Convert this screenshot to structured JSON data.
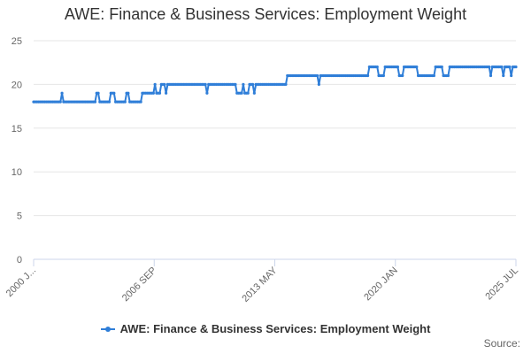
{
  "chart_data": {
    "type": "line",
    "title": "AWE: Finance & Business Services: Employment Weight",
    "xlabel": "",
    "ylabel": "",
    "ylim": [
      0,
      25
    ],
    "yticks": [
      0,
      5,
      10,
      15,
      20,
      25
    ],
    "xticks": [
      "2000 J...",
      "2006 SEP",
      "2013 MAY",
      "2020 JAN",
      "2025 JUL"
    ],
    "x_range": [
      "2000-01",
      "2025-07"
    ],
    "grid": "horizontal",
    "legend_position": "bottom",
    "series": [
      {
        "name": "AWE: Finance & Business Services: Employment Weight",
        "color": "#2f7ed8",
        "points": [
          [
            "2000-01",
            18
          ],
          [
            "2001-06",
            18
          ],
          [
            "2001-07",
            19
          ],
          [
            "2001-08",
            18
          ],
          [
            "2003-04",
            18
          ],
          [
            "2003-05",
            19
          ],
          [
            "2003-07",
            18
          ],
          [
            "2004-01",
            18
          ],
          [
            "2004-02",
            19
          ],
          [
            "2004-05",
            18
          ],
          [
            "2004-11",
            18
          ],
          [
            "2004-12",
            19
          ],
          [
            "2005-02",
            18
          ],
          [
            "2005-09",
            18
          ],
          [
            "2005-10",
            19
          ],
          [
            "2006-05",
            19
          ],
          [
            "2006-06",
            20
          ],
          [
            "2006-07",
            19
          ],
          [
            "2006-09",
            19
          ],
          [
            "2006-10",
            20
          ],
          [
            "2006-12",
            20
          ],
          [
            "2007-01",
            19
          ],
          [
            "2007-02",
            20
          ],
          [
            "2009-02",
            20
          ],
          [
            "2009-03",
            19
          ],
          [
            "2009-04",
            20
          ],
          [
            "2010-09",
            20
          ],
          [
            "2010-10",
            19
          ],
          [
            "2011-01",
            19
          ],
          [
            "2011-02",
            20
          ],
          [
            "2011-03",
            19
          ],
          [
            "2011-05",
            19
          ],
          [
            "2011-06",
            20
          ],
          [
            "2011-08",
            20
          ],
          [
            "2011-09",
            19
          ],
          [
            "2011-10",
            20
          ],
          [
            "2013-05",
            20
          ],
          [
            "2013-06",
            21
          ],
          [
            "2015-01",
            21
          ],
          [
            "2015-02",
            20
          ],
          [
            "2015-03",
            21
          ],
          [
            "2017-09",
            21
          ],
          [
            "2017-10",
            22
          ],
          [
            "2018-03",
            22
          ],
          [
            "2018-04",
            21
          ],
          [
            "2018-07",
            21
          ],
          [
            "2018-08",
            22
          ],
          [
            "2019-04",
            22
          ],
          [
            "2019-05",
            21
          ],
          [
            "2019-07",
            21
          ],
          [
            "2019-08",
            22
          ],
          [
            "2020-04",
            22
          ],
          [
            "2020-05",
            21
          ],
          [
            "2021-03",
            21
          ],
          [
            "2021-04",
            22
          ],
          [
            "2021-08",
            22
          ],
          [
            "2021-09",
            21
          ],
          [
            "2021-12",
            21
          ],
          [
            "2022-01",
            22
          ],
          [
            "2024-02",
            22
          ],
          [
            "2024-03",
            21
          ],
          [
            "2024-04",
            22
          ],
          [
            "2024-10",
            22
          ],
          [
            "2024-11",
            21
          ],
          [
            "2024-12",
            22
          ],
          [
            "2025-03",
            22
          ],
          [
            "2025-04",
            21
          ],
          [
            "2025-05",
            22
          ],
          [
            "2025-07",
            22
          ]
        ]
      }
    ]
  },
  "legend": {
    "label": "AWE: Finance & Business Services: Employment Weight"
  },
  "footer": {
    "source": "Source:"
  },
  "colors": {
    "series": "#2f7ed8",
    "grid": "#e6e6e6",
    "axis": "#ccd6eb",
    "text": "#333333",
    "muted": "#666666"
  }
}
